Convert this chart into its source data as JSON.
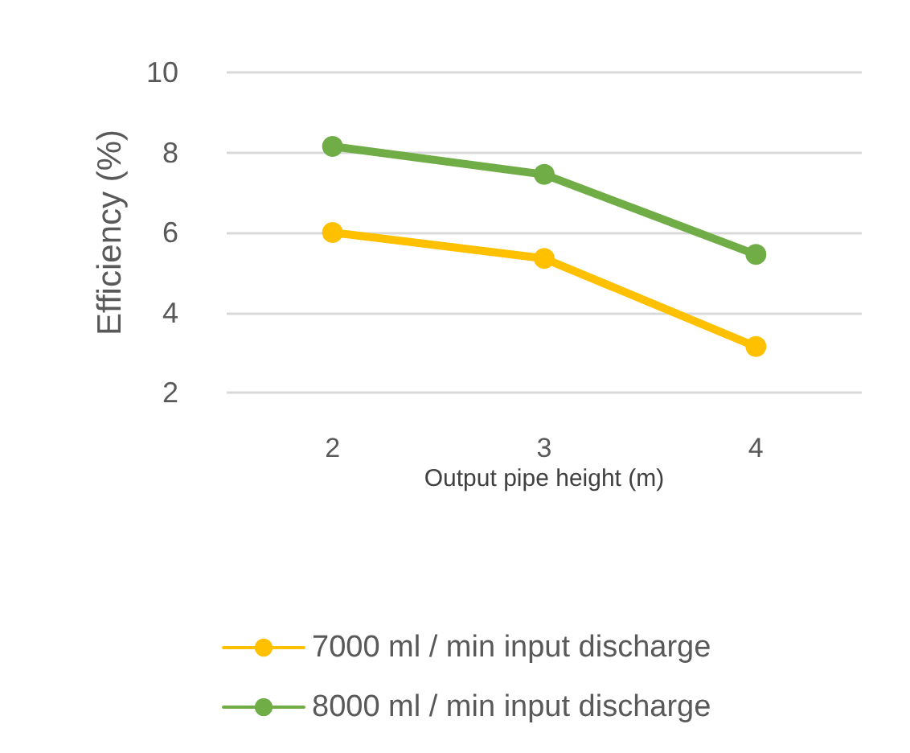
{
  "chart_data": {
    "type": "line",
    "xlabel": "Output pipe height (m)",
    "ylabel": "Efficiency (%)",
    "categories": [
      "2",
      "3",
      "4"
    ],
    "series": [
      {
        "name": "7000 ml / min input discharge",
        "color": "#ffc000",
        "values": [
          6.0,
          5.35,
          3.15
        ]
      },
      {
        "name": "8000 ml / min input discharge",
        "color": "#70ad47",
        "values": [
          8.15,
          7.45,
          5.45
        ]
      }
    ],
    "ylim": [
      2,
      10
    ],
    "yticks": [
      2,
      4,
      6,
      8,
      10
    ],
    "grid": "y",
    "legend": "bottom",
    "marker": "circle",
    "line_style": "solid"
  }
}
